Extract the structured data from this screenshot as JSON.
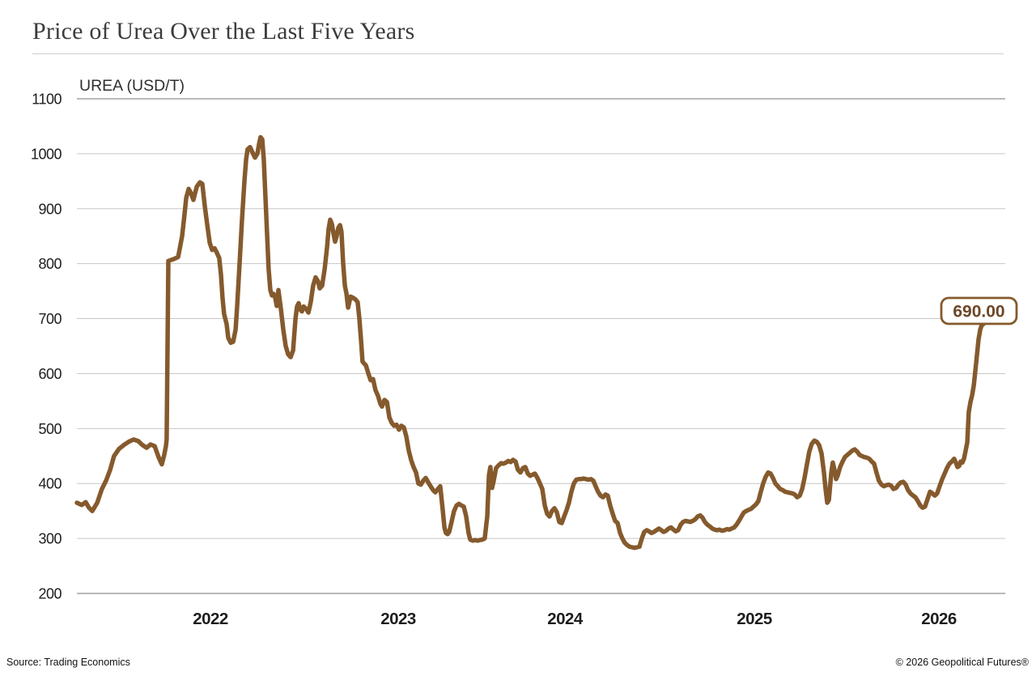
{
  "header": {
    "title": "Price of Urea Over the Last Five Years"
  },
  "chart": {
    "series_label": "UREA (USD/T)",
    "last_value_label": "690.00"
  },
  "footer": {
    "source": "Source: Trading Economics",
    "copyright": "© 2026 Geopolitical Futures®"
  },
  "colors": {
    "line": "#855a2d",
    "flag_text": "#6d4726",
    "grid": "#c7c7c7",
    "axis": "#8f8f8f",
    "tick_text": "#1d1d1d"
  },
  "chart_data": {
    "type": "line",
    "title": "Price of Urea Over the Last Five Years",
    "series_name": "UREA (USD/T)",
    "unit": "USD/T",
    "x_ticks": [
      "2022",
      "2023",
      "2024",
      "2025",
      "2026"
    ],
    "y_ticks": [
      1100,
      1000,
      900,
      800,
      700,
      600,
      500,
      400,
      300,
      200
    ],
    "ylim": [
      200,
      1100
    ],
    "xlim": [
      2021.29,
      2026.25
    ],
    "grid": true,
    "legend_position": "none",
    "last_value": 690.0,
    "points": [
      [
        2021.289,
        365
      ],
      [
        2021.315,
        361
      ],
      [
        2021.336,
        366
      ],
      [
        2021.353,
        356
      ],
      [
        2021.371,
        350
      ],
      [
        2021.397,
        365
      ],
      [
        2021.422,
        390
      ],
      [
        2021.444,
        405
      ],
      [
        2021.466,
        425
      ],
      [
        2021.487,
        450
      ],
      [
        2021.513,
        463
      ],
      [
        2021.539,
        470
      ],
      [
        2021.565,
        476
      ],
      [
        2021.591,
        480
      ],
      [
        2021.616,
        477
      ],
      [
        2021.638,
        470
      ],
      [
        2021.66,
        465
      ],
      [
        2021.681,
        471
      ],
      [
        2021.703,
        468
      ],
      [
        2021.724,
        448
      ],
      [
        2021.741,
        435
      ],
      [
        2021.754,
        452
      ],
      [
        2021.763,
        468
      ],
      [
        2021.767,
        480
      ],
      [
        2021.776,
        805
      ],
      [
        2021.802,
        808
      ],
      [
        2021.828,
        812
      ],
      [
        2021.849,
        850
      ],
      [
        2021.862,
        890
      ],
      [
        2021.871,
        920
      ],
      [
        2021.884,
        936
      ],
      [
        2021.897,
        928
      ],
      [
        2021.909,
        916
      ],
      [
        2021.927,
        940
      ],
      [
        2021.944,
        948
      ],
      [
        2021.957,
        945
      ],
      [
        2021.97,
        905
      ],
      [
        2021.983,
        870
      ],
      [
        2021.996,
        838
      ],
      [
        2022.009,
        825
      ],
      [
        2022.022,
        828
      ],
      [
        2022.034,
        820
      ],
      [
        2022.047,
        810
      ],
      [
        2022.056,
        780
      ],
      [
        2022.065,
        735
      ],
      [
        2022.073,
        708
      ],
      [
        2022.086,
        690
      ],
      [
        2022.095,
        665
      ],
      [
        2022.108,
        656
      ],
      [
        2022.121,
        658
      ],
      [
        2022.134,
        680
      ],
      [
        2022.142,
        720
      ],
      [
        2022.155,
        800
      ],
      [
        2022.168,
        880
      ],
      [
        2022.181,
        950
      ],
      [
        2022.19,
        990
      ],
      [
        2022.198,
        1008
      ],
      [
        2022.211,
        1012
      ],
      [
        2022.224,
        1002
      ],
      [
        2022.237,
        993
      ],
      [
        2022.25,
        1000
      ],
      [
        2022.259,
        1018
      ],
      [
        2022.267,
        1030
      ],
      [
        2022.276,
        1026
      ],
      [
        2022.284,
        990
      ],
      [
        2022.293,
        920
      ],
      [
        2022.302,
        850
      ],
      [
        2022.31,
        790
      ],
      [
        2022.319,
        752
      ],
      [
        2022.328,
        742
      ],
      [
        2022.336,
        745
      ],
      [
        2022.345,
        738
      ],
      [
        2022.353,
        723
      ],
      [
        2022.362,
        752
      ],
      [
        2022.375,
        718
      ],
      [
        2022.388,
        680
      ],
      [
        2022.401,
        650
      ],
      [
        2022.414,
        635
      ],
      [
        2022.427,
        630
      ],
      [
        2022.44,
        642
      ],
      [
        2022.453,
        700
      ],
      [
        2022.461,
        722
      ],
      [
        2022.47,
        728
      ],
      [
        2022.478,
        717
      ],
      [
        2022.487,
        713
      ],
      [
        2022.496,
        722
      ],
      [
        2022.509,
        718
      ],
      [
        2022.522,
        711
      ],
      [
        2022.534,
        730
      ],
      [
        2022.547,
        760
      ],
      [
        2022.56,
        775
      ],
      [
        2022.573,
        768
      ],
      [
        2022.582,
        755
      ],
      [
        2022.595,
        760
      ],
      [
        2022.608,
        790
      ],
      [
        2022.621,
        830
      ],
      [
        2022.629,
        862
      ],
      [
        2022.638,
        880
      ],
      [
        2022.647,
        872
      ],
      [
        2022.655,
        855
      ],
      [
        2022.664,
        840
      ],
      [
        2022.672,
        850
      ],
      [
        2022.681,
        865
      ],
      [
        2022.69,
        870
      ],
      [
        2022.698,
        858
      ],
      [
        2022.707,
        800
      ],
      [
        2022.716,
        760
      ],
      [
        2022.724,
        746
      ],
      [
        2022.733,
        720
      ],
      [
        2022.746,
        740
      ],
      [
        2022.759,
        738
      ],
      [
        2022.772,
        735
      ],
      [
        2022.784,
        730
      ],
      [
        2022.793,
        700
      ],
      [
        2022.802,
        660
      ],
      [
        2022.81,
        622
      ],
      [
        2022.819,
        618
      ],
      [
        2022.828,
        615
      ],
      [
        2022.841,
        600
      ],
      [
        2022.853,
        588
      ],
      [
        2022.866,
        590
      ],
      [
        2022.879,
        570
      ],
      [
        2022.892,
        560
      ],
      [
        2022.905,
        545
      ],
      [
        2022.914,
        540
      ],
      [
        2022.927,
        552
      ],
      [
        2022.94,
        548
      ],
      [
        2022.953,
        520
      ],
      [
        2022.966,
        510
      ],
      [
        2022.978,
        505
      ],
      [
        2022.991,
        507
      ],
      [
        2023.005,
        498
      ],
      [
        2023.019,
        505
      ],
      [
        2023.034,
        502
      ],
      [
        2023.049,
        485
      ],
      [
        2023.063,
        460
      ],
      [
        2023.078,
        442
      ],
      [
        2023.092,
        430
      ],
      [
        2023.107,
        420
      ],
      [
        2023.121,
        400
      ],
      [
        2023.136,
        398
      ],
      [
        2023.15,
        405
      ],
      [
        2023.165,
        410
      ],
      [
        2023.18,
        402
      ],
      [
        2023.194,
        395
      ],
      [
        2023.209,
        388
      ],
      [
        2023.223,
        384
      ],
      [
        2023.238,
        390
      ],
      [
        2023.252,
        395
      ],
      [
        2023.267,
        352
      ],
      [
        2023.277,
        320
      ],
      [
        2023.286,
        310
      ],
      [
        2023.296,
        308
      ],
      [
        2023.306,
        312
      ],
      [
        2023.32,
        330
      ],
      [
        2023.335,
        350
      ],
      [
        2023.35,
        360
      ],
      [
        2023.364,
        363
      ],
      [
        2023.379,
        360
      ],
      [
        2023.393,
        358
      ],
      [
        2023.408,
        340
      ],
      [
        2023.422,
        310
      ],
      [
        2023.432,
        298
      ],
      [
        2023.447,
        296
      ],
      [
        2023.461,
        297
      ],
      [
        2023.476,
        296
      ],
      [
        2023.49,
        297
      ],
      [
        2023.505,
        298
      ],
      [
        2023.519,
        300
      ],
      [
        2023.534,
        340
      ],
      [
        2023.544,
        415
      ],
      [
        2023.553,
        430
      ],
      [
        2023.563,
        392
      ],
      [
        2023.573,
        405
      ],
      [
        2023.587,
        428
      ],
      [
        2023.602,
        433
      ],
      [
        2023.617,
        437
      ],
      [
        2023.631,
        436
      ],
      [
        2023.646,
        438
      ],
      [
        2023.66,
        441
      ],
      [
        2023.675,
        439
      ],
      [
        2023.689,
        443
      ],
      [
        2023.704,
        440
      ],
      [
        2023.718,
        425
      ],
      [
        2023.733,
        420
      ],
      [
        2023.748,
        428
      ],
      [
        2023.762,
        430
      ],
      [
        2023.777,
        418
      ],
      [
        2023.791,
        414
      ],
      [
        2023.806,
        416
      ],
      [
        2023.82,
        418
      ],
      [
        2023.835,
        410
      ],
      [
        2023.85,
        400
      ],
      [
        2023.864,
        390
      ],
      [
        2023.879,
        360
      ],
      [
        2023.893,
        345
      ],
      [
        2023.908,
        340
      ],
      [
        2023.922,
        350
      ],
      [
        2023.937,
        355
      ],
      [
        2023.951,
        348
      ],
      [
        2023.966,
        330
      ],
      [
        2023.981,
        328
      ],
      [
        2023.995,
        340
      ],
      [
        2024.009,
        352
      ],
      [
        2024.021,
        365
      ],
      [
        2024.034,
        385
      ],
      [
        2024.047,
        400
      ],
      [
        2024.06,
        407
      ],
      [
        2024.073,
        408
      ],
      [
        2024.085,
        408
      ],
      [
        2024.098,
        409
      ],
      [
        2024.111,
        408
      ],
      [
        2024.124,
        407
      ],
      [
        2024.137,
        408
      ],
      [
        2024.15,
        405
      ],
      [
        2024.162,
        395
      ],
      [
        2024.175,
        385
      ],
      [
        2024.188,
        378
      ],
      [
        2024.201,
        375
      ],
      [
        2024.214,
        380
      ],
      [
        2024.226,
        378
      ],
      [
        2024.239,
        360
      ],
      [
        2024.252,
        345
      ],
      [
        2024.265,
        332
      ],
      [
        2024.278,
        328
      ],
      [
        2024.291,
        310
      ],
      [
        2024.303,
        300
      ],
      [
        2024.316,
        292
      ],
      [
        2024.329,
        288
      ],
      [
        2024.342,
        285
      ],
      [
        2024.355,
        284
      ],
      [
        2024.368,
        283
      ],
      [
        2024.38,
        284
      ],
      [
        2024.393,
        285
      ],
      [
        2024.406,
        300
      ],
      [
        2024.419,
        312
      ],
      [
        2024.432,
        315
      ],
      [
        2024.444,
        313
      ],
      [
        2024.457,
        310
      ],
      [
        2024.47,
        312
      ],
      [
        2024.483,
        315
      ],
      [
        2024.496,
        318
      ],
      [
        2024.509,
        315
      ],
      [
        2024.521,
        312
      ],
      [
        2024.534,
        314
      ],
      [
        2024.547,
        318
      ],
      [
        2024.56,
        320
      ],
      [
        2024.573,
        316
      ],
      [
        2024.585,
        313
      ],
      [
        2024.598,
        315
      ],
      [
        2024.611,
        325
      ],
      [
        2024.624,
        330
      ],
      [
        2024.637,
        332
      ],
      [
        2024.65,
        331
      ],
      [
        2024.662,
        330
      ],
      [
        2024.675,
        332
      ],
      [
        2024.688,
        335
      ],
      [
        2024.701,
        340
      ],
      [
        2024.714,
        342
      ],
      [
        2024.726,
        338
      ],
      [
        2024.739,
        330
      ],
      [
        2024.752,
        325
      ],
      [
        2024.765,
        322
      ],
      [
        2024.778,
        318
      ],
      [
        2024.791,
        316
      ],
      [
        2024.803,
        315
      ],
      [
        2024.816,
        316
      ],
      [
        2024.829,
        314
      ],
      [
        2024.842,
        315
      ],
      [
        2024.855,
        317
      ],
      [
        2024.868,
        316
      ],
      [
        2024.88,
        318
      ],
      [
        2024.893,
        320
      ],
      [
        2024.906,
        325
      ],
      [
        2024.919,
        332
      ],
      [
        2024.932,
        340
      ],
      [
        2024.944,
        347
      ],
      [
        2024.957,
        350
      ],
      [
        2024.97,
        352
      ],
      [
        2024.983,
        354
      ],
      [
        2024.996,
        358
      ],
      [
        2025.009,
        362
      ],
      [
        2025.022,
        368
      ],
      [
        2025.035,
        385
      ],
      [
        2025.048,
        400
      ],
      [
        2025.061,
        412
      ],
      [
        2025.075,
        420
      ],
      [
        2025.088,
        418
      ],
      [
        2025.101,
        410
      ],
      [
        2025.114,
        400
      ],
      [
        2025.127,
        395
      ],
      [
        2025.14,
        390
      ],
      [
        2025.154,
        388
      ],
      [
        2025.167,
        385
      ],
      [
        2025.18,
        384
      ],
      [
        2025.193,
        383
      ],
      [
        2025.206,
        382
      ],
      [
        2025.219,
        380
      ],
      [
        2025.232,
        375
      ],
      [
        2025.246,
        378
      ],
      [
        2025.259,
        390
      ],
      [
        2025.272,
        410
      ],
      [
        2025.285,
        435
      ],
      [
        2025.298,
        458
      ],
      [
        2025.311,
        472
      ],
      [
        2025.325,
        478
      ],
      [
        2025.338,
        476
      ],
      [
        2025.351,
        470
      ],
      [
        2025.364,
        455
      ],
      [
        2025.377,
        420
      ],
      [
        2025.386,
        390
      ],
      [
        2025.395,
        365
      ],
      [
        2025.404,
        370
      ],
      [
        2025.417,
        420
      ],
      [
        2025.425,
        438
      ],
      [
        2025.434,
        425
      ],
      [
        2025.443,
        408
      ],
      [
        2025.452,
        415
      ],
      [
        2025.465,
        430
      ],
      [
        2025.478,
        440
      ],
      [
        2025.491,
        448
      ],
      [
        2025.504,
        452
      ],
      [
        2025.518,
        456
      ],
      [
        2025.531,
        460
      ],
      [
        2025.544,
        462
      ],
      [
        2025.557,
        458
      ],
      [
        2025.57,
        452
      ],
      [
        2025.583,
        450
      ],
      [
        2025.596,
        448
      ],
      [
        2025.61,
        447
      ],
      [
        2025.623,
        445
      ],
      [
        2025.636,
        440
      ],
      [
        2025.649,
        436
      ],
      [
        2025.662,
        420
      ],
      [
        2025.675,
        405
      ],
      [
        2025.689,
        398
      ],
      [
        2025.702,
        395
      ],
      [
        2025.715,
        397
      ],
      [
        2025.728,
        398
      ],
      [
        2025.741,
        396
      ],
      [
        2025.754,
        390
      ],
      [
        2025.768,
        392
      ],
      [
        2025.781,
        398
      ],
      [
        2025.794,
        402
      ],
      [
        2025.807,
        403
      ],
      [
        2025.82,
        398
      ],
      [
        2025.833,
        388
      ],
      [
        2025.846,
        382
      ],
      [
        2025.86,
        378
      ],
      [
        2025.873,
        375
      ],
      [
        2025.886,
        368
      ],
      [
        2025.899,
        360
      ],
      [
        2025.912,
        356
      ],
      [
        2025.925,
        358
      ],
      [
        2025.939,
        372
      ],
      [
        2025.952,
        385
      ],
      [
        2025.965,
        382
      ],
      [
        2025.978,
        378
      ],
      [
        2025.991,
        382
      ],
      [
        2026.004,
        395
      ],
      [
        2026.018,
        408
      ],
      [
        2026.031,
        418
      ],
      [
        2026.044,
        428
      ],
      [
        2026.057,
        436
      ],
      [
        2026.07,
        440
      ],
      [
        2026.083,
        445
      ],
      [
        2026.092,
        438
      ],
      [
        2026.101,
        430
      ],
      [
        2026.11,
        432
      ],
      [
        2026.118,
        440
      ],
      [
        2026.127,
        438
      ],
      [
        2026.136,
        445
      ],
      [
        2026.145,
        460
      ],
      [
        2026.154,
        475
      ],
      [
        2026.162,
        530
      ],
      [
        2026.171,
        548
      ],
      [
        2026.18,
        560
      ],
      [
        2026.189,
        578
      ],
      [
        2026.202,
        620
      ],
      [
        2026.215,
        662
      ],
      [
        2026.224,
        680
      ],
      [
        2026.232,
        688
      ],
      [
        2026.241,
        690
      ]
    ]
  }
}
